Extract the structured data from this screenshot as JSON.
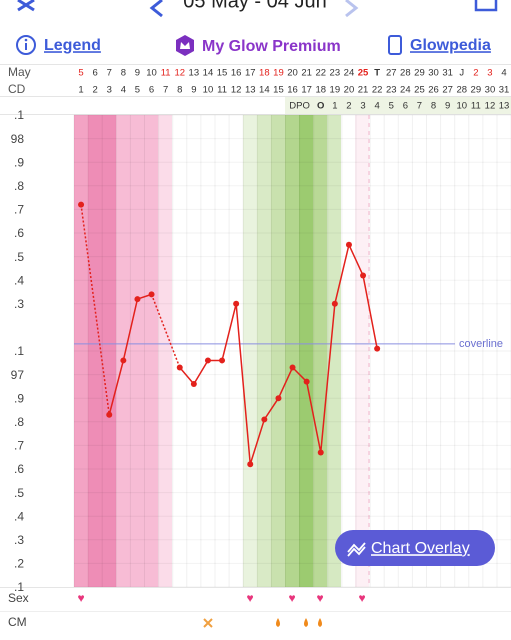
{
  "header": {
    "title": "05 May - 04 Jun"
  },
  "nav": {
    "legend": "Legend",
    "premium": "My Glow Premium",
    "glowpedia": "Glowpedia"
  },
  "chart_data": {
    "type": "line",
    "row_labels": [
      "May",
      "CD"
    ],
    "dates": [
      5,
      6,
      7,
      8,
      9,
      10,
      11,
      12,
      13,
      14,
      15,
      16,
      17,
      18,
      19,
      20,
      21,
      22,
      23,
      24,
      25,
      "T",
      27,
      28,
      29,
      30,
      31,
      "J",
      2,
      3,
      4
    ],
    "cycle_days": [
      1,
      2,
      3,
      4,
      5,
      6,
      7,
      8,
      9,
      10,
      11,
      12,
      13,
      14,
      15,
      16,
      17,
      18,
      19,
      20,
      21,
      22,
      23,
      24,
      25,
      26,
      27,
      28,
      29,
      30,
      31
    ],
    "dpo_label": "DPO",
    "dpo": [
      "O",
      1,
      2,
      3,
      4,
      5,
      6,
      7,
      8,
      9,
      10,
      11,
      12,
      13
    ],
    "ylim": [
      96.1,
      98.1
    ],
    "yticks": [
      {
        "value": 98.1,
        "label": ".1"
      },
      98,
      {
        "value": 97.9,
        "label": ".9"
      },
      {
        "value": 97.8,
        "label": ".8"
      },
      {
        "value": 97.7,
        "label": ".7"
      },
      {
        "value": 97.6,
        "label": ".6"
      },
      {
        "value": 97.5,
        "label": ".5"
      },
      {
        "value": 97.4,
        "label": ".4"
      },
      {
        "value": 97.3,
        "label": ".3"
      },
      {
        "value": 97.1,
        "label": ".1"
      },
      97,
      {
        "value": 96.9,
        "label": ".9"
      },
      {
        "value": 96.8,
        "label": ".8"
      },
      {
        "value": 96.7,
        "label": ".7"
      },
      {
        "value": 96.6,
        "label": ".6"
      },
      {
        "value": 96.5,
        "label": ".5"
      },
      {
        "value": 96.4,
        "label": ".4"
      },
      {
        "value": 96.3,
        "label": ".3"
      },
      {
        "value": 96.2,
        "label": ".2"
      },
      {
        "value": 96.1,
        "label": ".1"
      }
    ],
    "values": [
      97.72,
      null,
      96.83,
      97.06,
      97.32,
      97.34,
      null,
      97.03,
      96.96,
      97.06,
      97.06,
      97.3,
      96.62,
      96.81,
      96.9,
      97.03,
      96.97,
      96.67,
      97.3,
      97.55,
      97.42,
      97.11,
      null,
      null,
      null,
      null,
      null,
      null,
      null,
      null,
      null
    ],
    "color": "#e3211c",
    "coverline": {
      "value": 97.13,
      "label": "coverline"
    },
    "side_labels": [
      "Sex",
      "CM"
    ],
    "button": "Chart Overlay"
  }
}
